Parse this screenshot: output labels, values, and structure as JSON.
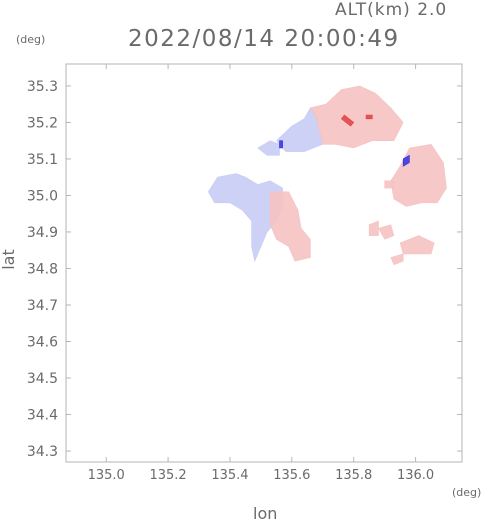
{
  "header": {
    "alt_label": "ALT(km) 2.0",
    "timestamp": "2022/08/14 20:00:49"
  },
  "chart_data": {
    "type": "heatmap",
    "title": "2022/08/14 20:00:49",
    "subtitle": "ALT(km) 2.0",
    "xlabel": "lon",
    "ylabel": "lat",
    "x_unit": "(deg)",
    "y_unit": "(deg)",
    "xlim": [
      134.87,
      136.15
    ],
    "ylim": [
      34.27,
      35.36
    ],
    "x_ticks": [
      135.0,
      135.2,
      135.4,
      135.6,
      135.8,
      136.0
    ],
    "x_tick_labels": [
      "135.0",
      "135.2",
      "135.4",
      "135.6",
      "135.8",
      "136.0"
    ],
    "y_ticks": [
      34.3,
      34.4,
      34.5,
      34.6,
      34.7,
      34.8,
      34.9,
      35.0,
      35.1,
      35.2,
      35.3
    ],
    "y_tick_labels": [
      "34.3",
      "34.4",
      "34.5",
      "34.6",
      "34.7",
      "34.8",
      "34.9",
      "35.0",
      "35.1",
      "35.2",
      "35.3"
    ],
    "grid": false,
    "colors": {
      "negative": "#c8ccf5",
      "positive": "#f6c2c2",
      "strong_negative": "#3030e0",
      "strong_positive": "#e04040"
    },
    "regions": [
      {
        "sign": "negative",
        "points": [
          [
            135.33,
            35.01
          ],
          [
            135.36,
            35.05
          ],
          [
            135.42,
            35.06
          ],
          [
            135.45,
            35.05
          ],
          [
            135.49,
            35.03
          ],
          [
            135.53,
            35.04
          ],
          [
            135.57,
            35.02
          ],
          [
            135.57,
            34.97
          ],
          [
            135.55,
            34.93
          ],
          [
            135.52,
            34.9
          ],
          [
            135.5,
            34.86
          ],
          [
            135.48,
            34.82
          ],
          [
            135.47,
            34.86
          ],
          [
            135.47,
            34.93
          ],
          [
            135.44,
            34.96
          ],
          [
            135.4,
            34.98
          ],
          [
            135.35,
            34.98
          ]
        ]
      },
      {
        "sign": "positive",
        "points": [
          [
            135.53,
            35.01
          ],
          [
            135.59,
            35.01
          ],
          [
            135.62,
            34.96
          ],
          [
            135.63,
            34.91
          ],
          [
            135.66,
            34.88
          ],
          [
            135.66,
            34.83
          ],
          [
            135.61,
            34.82
          ],
          [
            135.59,
            34.86
          ],
          [
            135.55,
            34.88
          ],
          [
            135.53,
            34.92
          ]
        ]
      },
      {
        "sign": "negative",
        "points": [
          [
            135.49,
            35.13
          ],
          [
            135.53,
            35.15
          ],
          [
            135.56,
            35.14
          ],
          [
            135.56,
            35.11
          ],
          [
            135.52,
            35.11
          ]
        ]
      },
      {
        "sign": "negative",
        "points": [
          [
            135.55,
            35.15
          ],
          [
            135.6,
            35.19
          ],
          [
            135.64,
            35.21
          ],
          [
            135.66,
            35.24
          ],
          [
            135.68,
            35.22
          ],
          [
            135.7,
            35.14
          ],
          [
            135.64,
            35.12
          ],
          [
            135.58,
            35.12
          ]
        ]
      },
      {
        "sign": "positive",
        "points": [
          [
            135.66,
            35.24
          ],
          [
            135.71,
            35.25
          ],
          [
            135.76,
            35.29
          ],
          [
            135.82,
            35.3
          ],
          [
            135.87,
            35.28
          ],
          [
            135.92,
            35.24
          ],
          [
            135.96,
            35.2
          ],
          [
            135.93,
            35.15
          ],
          [
            135.86,
            35.15
          ],
          [
            135.8,
            35.13
          ],
          [
            135.74,
            35.14
          ],
          [
            135.7,
            35.14
          ],
          [
            135.68,
            35.21
          ]
        ]
      },
      {
        "sign": "positive",
        "points": [
          [
            135.98,
            35.13
          ],
          [
            136.05,
            35.14
          ],
          [
            136.09,
            35.09
          ],
          [
            136.1,
            35.02
          ],
          [
            136.07,
            34.98
          ],
          [
            136.02,
            34.98
          ],
          [
            135.97,
            34.97
          ],
          [
            135.93,
            34.99
          ],
          [
            135.92,
            35.04
          ],
          [
            135.95,
            35.08
          ]
        ]
      },
      {
        "sign": "positive",
        "points": [
          [
            135.9,
            35.04
          ],
          [
            135.93,
            35.04
          ],
          [
            135.93,
            35.02
          ],
          [
            135.9,
            35.02
          ]
        ]
      },
      {
        "sign": "positive",
        "points": [
          [
            135.85,
            34.92
          ],
          [
            135.88,
            34.93
          ],
          [
            135.88,
            34.89
          ],
          [
            135.85,
            34.89
          ]
        ]
      },
      {
        "sign": "positive",
        "points": [
          [
            135.88,
            34.91
          ],
          [
            135.92,
            34.92
          ],
          [
            135.93,
            34.89
          ],
          [
            135.9,
            34.88
          ]
        ]
      },
      {
        "sign": "positive",
        "points": [
          [
            135.95,
            34.87
          ],
          [
            136.01,
            34.89
          ],
          [
            136.06,
            34.87
          ],
          [
            136.05,
            34.84
          ],
          [
            136.0,
            34.84
          ],
          [
            135.96,
            34.84
          ]
        ]
      },
      {
        "sign": "positive",
        "points": [
          [
            135.92,
            34.83
          ],
          [
            135.96,
            34.84
          ],
          [
            135.96,
            34.82
          ],
          [
            135.93,
            34.81
          ]
        ]
      }
    ],
    "highlights": [
      {
        "sign": "strong_negative",
        "points": [
          [
            135.56,
            35.15
          ],
          [
            135.57,
            35.15
          ],
          [
            135.57,
            35.13
          ],
          [
            135.56,
            35.13
          ]
        ]
      },
      {
        "sign": "strong_negative",
        "points": [
          [
            135.96,
            35.1
          ],
          [
            135.98,
            35.11
          ],
          [
            135.98,
            35.09
          ],
          [
            135.96,
            35.08
          ]
        ]
      },
      {
        "sign": "strong_positive",
        "points": [
          [
            135.76,
            35.21
          ],
          [
            135.79,
            35.19
          ],
          [
            135.8,
            35.2
          ],
          [
            135.77,
            35.22
          ]
        ]
      },
      {
        "sign": "strong_positive",
        "points": [
          [
            135.84,
            35.22
          ],
          [
            135.86,
            35.22
          ],
          [
            135.86,
            35.21
          ],
          [
            135.84,
            35.21
          ]
        ]
      }
    ]
  }
}
